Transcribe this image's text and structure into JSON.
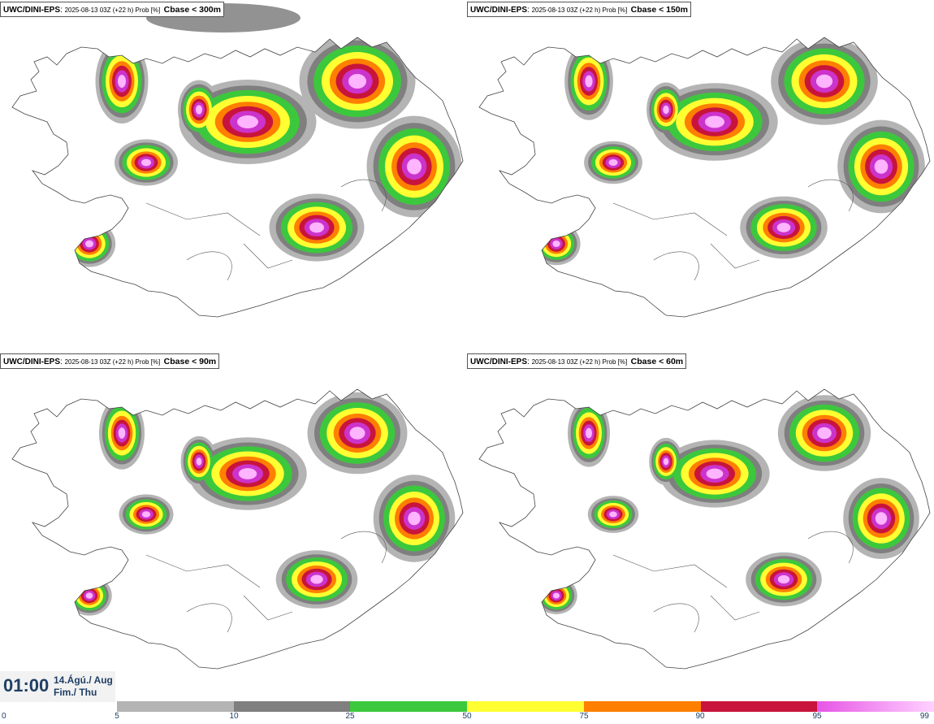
{
  "panels": [
    {
      "model": "UWC/DINI-EPS",
      "run": "2025-08-13 03Z (+22 h) Prob [%]",
      "field": "Cbase < 300m"
    },
    {
      "model": "UWC/DINI-EPS",
      "run": "2025-08-13 03Z (+22 h) Prob [%]",
      "field": "Cbase < 150m"
    },
    {
      "model": "UWC/DINI-EPS",
      "run": "2025-08-13 03Z (+22 h) Prob [%]",
      "field": "Cbase < 90m"
    },
    {
      "model": "UWC/DINI-EPS",
      "run": "2025-08-13 03Z (+22 h) Prob [%]",
      "field": "Cbase < 60m"
    }
  ],
  "valid_time": {
    "time": "01:00",
    "date_line1": "14.Ágú./ Aug",
    "date_line2": "Fim./ Thu"
  },
  "colorbar": {
    "ticks": [
      "0",
      "5",
      "10",
      "25",
      "50",
      "75",
      "90",
      "95",
      "99"
    ],
    "colors": [
      "#b4b4b4",
      "#7f7f7f",
      "#3cc83c",
      "#ffff32",
      "#ff7f00",
      "#c8143c",
      "#e655e6"
    ],
    "last_color_to": "#ffd2ff"
  },
  "palette": {
    "land_outline": "#444444",
    "p5": "#b4b4b4",
    "p10": "#7f7f7f",
    "p25": "#3cc83c",
    "p50": "#ffff32",
    "p75": "#ff7f00",
    "p90": "#c8143c",
    "p95": "#cc33cc",
    "p99": "#ffb4ff"
  }
}
